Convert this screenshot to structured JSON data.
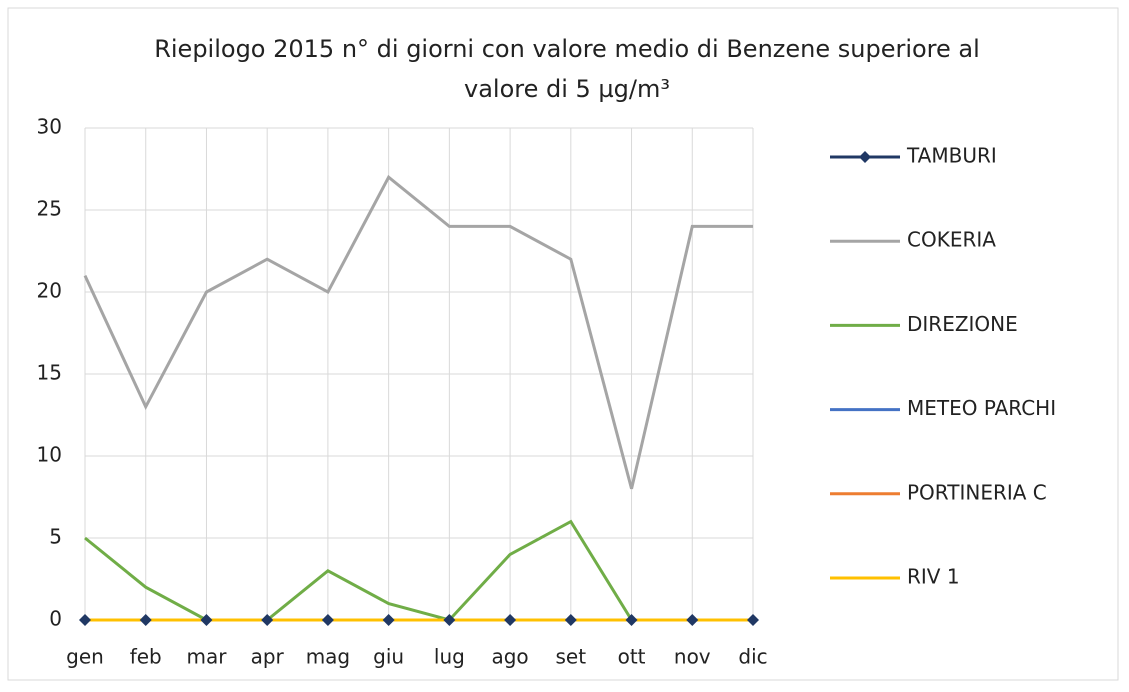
{
  "chart_data": {
    "type": "line",
    "title": [
      "Riepilogo 2015 n° di giorni con valore medio di Benzene superiore al",
      "valore di 5 µg/m³"
    ],
    "categories": [
      "gen",
      "feb",
      "mar",
      "apr",
      "mag",
      "giu",
      "lug",
      "ago",
      "set",
      "ott",
      "nov",
      "dic"
    ],
    "series": [
      {
        "name": "TAMBURI",
        "color": "#203864",
        "marker": true,
        "values": [
          0,
          0,
          0,
          0,
          0,
          0,
          0,
          0,
          0,
          0,
          0,
          0
        ]
      },
      {
        "name": "COKERIA",
        "color": "#a5a5a5",
        "values": [
          21,
          13,
          20,
          22,
          20,
          27,
          24,
          24,
          22,
          8,
          24,
          24
        ]
      },
      {
        "name": "DIREZIONE",
        "color": "#70ad47",
        "values": [
          5,
          2,
          0,
          0,
          3,
          1,
          0,
          4,
          6,
          0,
          0,
          0
        ]
      },
      {
        "name": "METEO PARCHI",
        "color": "#4472c4",
        "values": [
          0,
          0,
          0,
          0,
          0,
          0,
          0,
          0,
          0,
          0,
          0,
          0
        ]
      },
      {
        "name": "PORTINERIA C",
        "color": "#ed7d31",
        "values": [
          0,
          0,
          0,
          0,
          0,
          0,
          0,
          0,
          0,
          0,
          0,
          0
        ]
      },
      {
        "name": "RIV 1",
        "color": "#ffc000",
        "values": [
          0,
          0,
          0,
          0,
          0,
          0,
          0,
          0,
          0,
          0,
          0,
          0
        ]
      }
    ],
    "ylim": [
      0,
      30
    ],
    "yticks": [
      0,
      5,
      10,
      15,
      20,
      25,
      30
    ],
    "grid": true,
    "legend": "right"
  }
}
